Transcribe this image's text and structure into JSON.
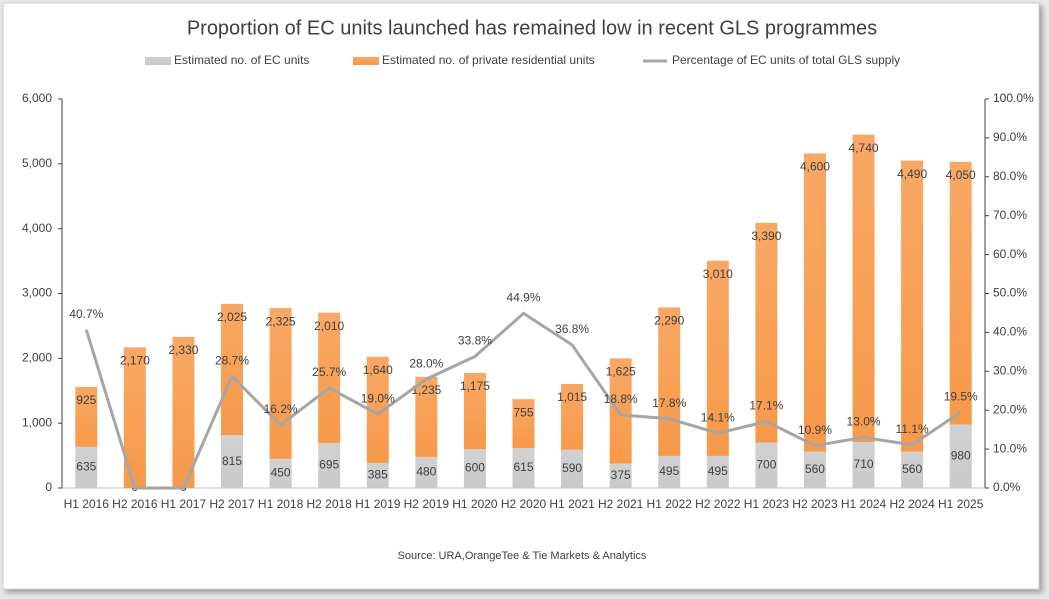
{
  "chart_data": {
    "type": "bar",
    "stacked": true,
    "title": "Proportion of EC units launched has remained low in recent GLS programmes",
    "source": "Source: URA,OrangeTee & Tie Markets & Analytics",
    "categories": [
      "H1 2016",
      "H2 2016",
      "H1 2017",
      "H2 2017",
      "H1 2018",
      "H2 2018",
      "H1 2019",
      "H2 2019",
      "H1 2020",
      "H2 2020",
      "H1 2021",
      "H2 2021",
      "H1 2022",
      "H2 2022",
      "H1 2023",
      "H2 2023",
      "H1 2024",
      "H2 2024",
      "H1 2025"
    ],
    "series": [
      {
        "name": "Estimated no. of EC units",
        "color": "#c9c9c9",
        "values": [
          635,
          0,
          0,
          815,
          450,
          695,
          385,
          480,
          600,
          615,
          590,
          375,
          495,
          495,
          700,
          560,
          710,
          560,
          980
        ]
      },
      {
        "name": "Estimated no. of private residential units",
        "color": "#f7994a",
        "values": [
          925,
          2170,
          2330,
          2025,
          2325,
          2010,
          1640,
          1235,
          1175,
          755,
          1015,
          1625,
          2290,
          3010,
          3390,
          4600,
          4740,
          4490,
          4050
        ],
        "value_labels": [
          "925",
          "2,170",
          "2,330",
          "2,025",
          "2,325",
          "2,010",
          "1,640",
          "1,235",
          "1,175",
          "755",
          "1,015",
          "1,625",
          "2,290",
          "3,010",
          "3,390",
          "4,600",
          "4,740",
          "4,490",
          "4,050"
        ]
      },
      {
        "name": "Percentage of EC units of total GLS supply",
        "color": "#a6a6a6",
        "type": "line",
        "axis": "y2",
        "values": [
          40.7,
          0,
          0,
          28.7,
          16.2,
          25.7,
          19.0,
          28.0,
          33.8,
          44.9,
          36.8,
          18.8,
          17.8,
          14.1,
          17.1,
          10.9,
          13.0,
          11.1,
          19.5
        ],
        "value_labels": [
          "40.7%",
          null,
          null,
          "28.7%",
          "16.2%",
          "25.7%",
          "19.0%",
          "28.0%",
          "33.8%",
          "44.9%",
          "36.8%",
          "18.8%",
          "17.8%",
          "14.1%",
          "17.1%",
          "10.9%",
          "13.0%",
          "11.1%",
          "19.5%"
        ]
      }
    ],
    "ylim": [
      0,
      6000
    ],
    "yticks": [
      0,
      {
        "value": 1000,
        "label": "1,000"
      },
      {
        "value": 2000,
        "label": "2,000"
      },
      {
        "value": 3000,
        "label": "3,000"
      },
      {
        "value": 4000,
        "label": "4,000"
      },
      {
        "value": 5000,
        "label": "5,000"
      },
      {
        "value": 6000,
        "label": "6,000"
      }
    ],
    "y2lim": [
      0,
      100
    ],
    "y2ticks": [
      {
        "value": 0,
        "label": "0.0%"
      },
      {
        "value": 10,
        "label": "10.0%"
      },
      {
        "value": 20,
        "label": "20.0%"
      },
      {
        "value": 30,
        "label": "30.0%"
      },
      {
        "value": 40,
        "label": "40.0%"
      },
      {
        "value": 50,
        "label": "50.0%"
      },
      {
        "value": 60,
        "label": "60.0%"
      },
      {
        "value": 70,
        "label": "70.0%"
      },
      {
        "value": 80,
        "label": "80.0%"
      },
      {
        "value": 90,
        "label": "90.0%"
      },
      {
        "value": 100,
        "label": "100.0%"
      }
    ],
    "legend": "top"
  }
}
